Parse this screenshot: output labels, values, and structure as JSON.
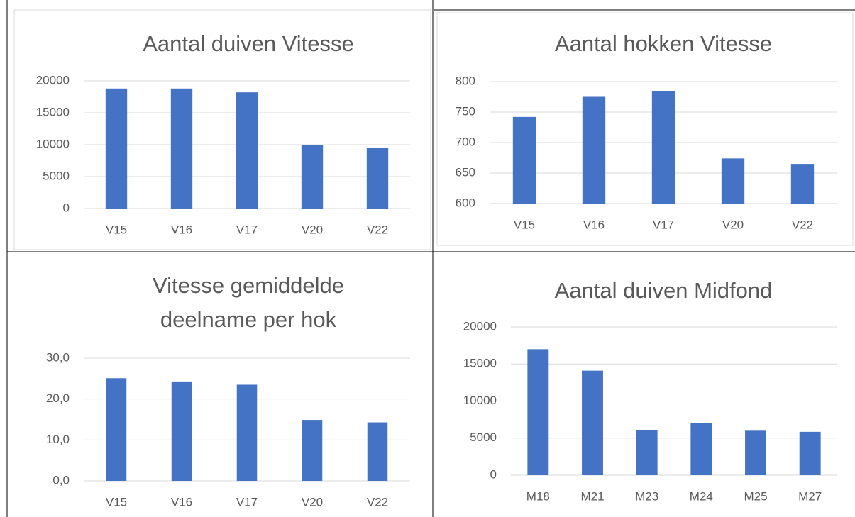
{
  "chart_data": [
    {
      "type": "bar",
      "title": "Aantal duiven Vitesse",
      "categories": [
        "V15",
        "V16",
        "V17",
        "V20",
        "V22"
      ],
      "values": [
        18800,
        18800,
        18200,
        10000,
        9550
      ],
      "color": "#4472c4",
      "ylim": [
        0,
        20000
      ],
      "yticks": [
        0,
        5000,
        10000,
        15000,
        20000
      ],
      "grid": true
    },
    {
      "type": "bar",
      "title": "Aantal hokken Vitesse",
      "categories": [
        "V15",
        "V16",
        "V17",
        "V20",
        "V22"
      ],
      "values": [
        742,
        775,
        784,
        674,
        665
      ],
      "color": "#4472c4",
      "ylim": [
        600,
        800
      ],
      "yticks": [
        600,
        650,
        700,
        750,
        800
      ],
      "grid": true
    },
    {
      "type": "bar",
      "title": "Vitesse gemiddelde deelname per hok",
      "categories": [
        "V15",
        "V16",
        "V17",
        "V20",
        "V22"
      ],
      "values": [
        25.1,
        24.3,
        23.5,
        14.9,
        14.3
      ],
      "color": "#4472c4",
      "ylim": [
        0,
        30
      ],
      "yticks": [
        {
          "value": 0,
          "label": "0,0"
        },
        {
          "value": 10,
          "label": "10,0"
        },
        {
          "value": 20,
          "label": "20,0"
        },
        {
          "value": 30,
          "label": "30,0"
        }
      ],
      "grid": true
    },
    {
      "type": "bar",
      "title": "Aantal duiven Midfond",
      "categories": [
        "M18",
        "M21",
        "M23",
        "M24",
        "M25",
        "M27"
      ],
      "values": [
        17000,
        14100,
        6100,
        7000,
        6000,
        5850
      ],
      "color": "#4472c4",
      "ylim": [
        0,
        20000
      ],
      "yticks": [
        0,
        5000,
        10000,
        15000,
        20000
      ],
      "grid": true
    }
  ]
}
